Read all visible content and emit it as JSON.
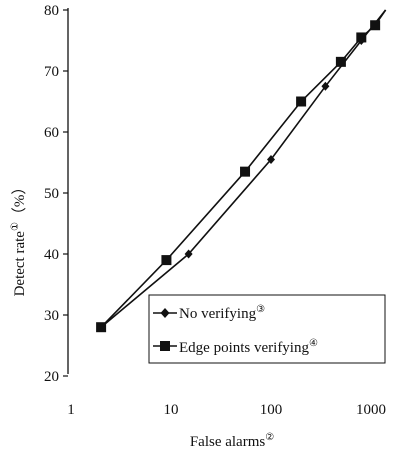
{
  "chart_data": {
    "type": "line",
    "xscale": "log",
    "xlabel": "False alarms",
    "xlabel_note": "②",
    "ylabel": "Detect rate",
    "ylabel_note": "①",
    "ylabel_unit": "（%）",
    "xlim": [
      1,
      1400
    ],
    "ylim": [
      20,
      80
    ],
    "x_ticks": [
      1,
      10,
      100,
      1000
    ],
    "x_tick_labels": [
      "1",
      "10",
      "100",
      "1000"
    ],
    "y_ticks": [
      20,
      30,
      40,
      50,
      60,
      70,
      80
    ],
    "y_tick_labels": [
      "20",
      "30",
      "40",
      "50",
      "60",
      "70",
      "80"
    ],
    "grid": false,
    "legend_position": "bottom-right",
    "series": [
      {
        "name": "No verifying",
        "note": "③",
        "marker": "diamond",
        "color": "#111111",
        "x": [
          2,
          15,
          100,
          350,
          800,
          1400
        ],
        "y": [
          28,
          40,
          55.5,
          67.5,
          75,
          80
        ]
      },
      {
        "name": "Edge points verifying",
        "note": "④",
        "marker": "square",
        "color": "#111111",
        "x": [
          2,
          9,
          55,
          200,
          500,
          800,
          1100,
          1400
        ],
        "y": [
          28,
          39,
          53.5,
          65,
          71.5,
          75.5,
          77.5,
          80
        ]
      }
    ]
  }
}
